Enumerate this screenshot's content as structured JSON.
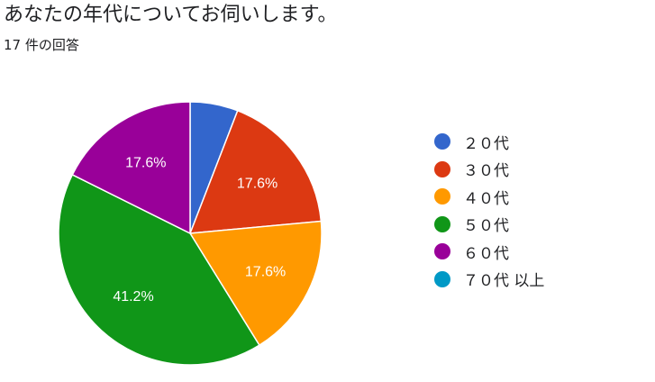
{
  "question": {
    "title": "あなたの年代についてお伺いします。",
    "response_count": "17 件の回答"
  },
  "chart_data": {
    "type": "pie",
    "categories": [
      "２０代",
      "３０代",
      "４０代",
      "５０代",
      "６０代",
      "７０代 以上"
    ],
    "values": [
      1,
      3,
      3,
      7,
      3,
      0
    ],
    "percent_labels": [
      "",
      "17.6%",
      "17.6%",
      "41.2%",
      "17.6%",
      ""
    ],
    "colors": [
      "#3366cc",
      "#dc3912",
      "#ff9900",
      "#109618",
      "#990099",
      "#0099c6"
    ],
    "start_angle_deg": 90,
    "direction": "clockwise",
    "legend_position": "right"
  }
}
